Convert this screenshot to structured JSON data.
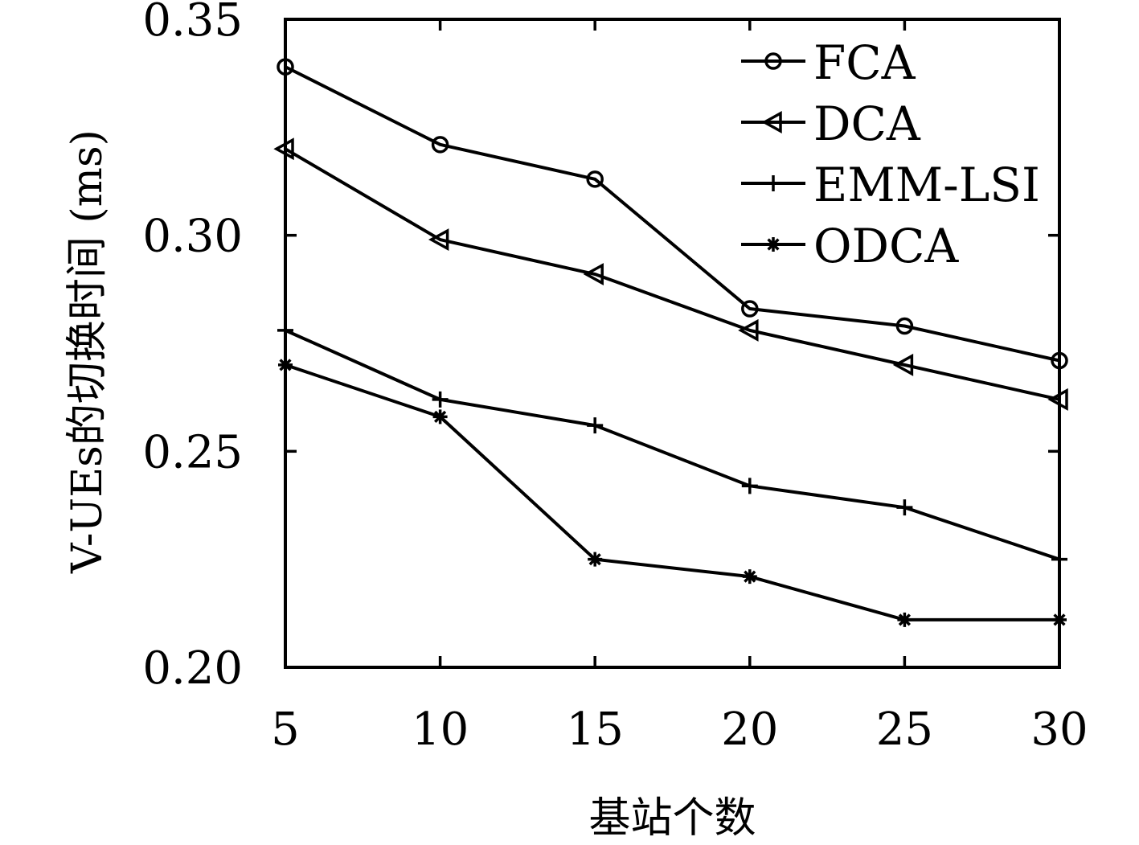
{
  "chart_data": {
    "type": "line",
    "x": [
      5,
      10,
      15,
      20,
      25,
      30
    ],
    "xlabel": "基站个数",
    "ylabel": "V-UEs的切换时间 (ms)",
    "xlim": [
      5,
      30
    ],
    "ylim": [
      0.2,
      0.35
    ],
    "xticks": [
      "5",
      "10",
      "15",
      "20",
      "25",
      "30"
    ],
    "yticks": [
      "0.20",
      "0.25",
      "0.30",
      "0.35"
    ],
    "grid": false,
    "legend_position": "top-right",
    "series": [
      {
        "name": "FCA",
        "marker": "circle",
        "values": [
          0.339,
          0.321,
          0.313,
          0.283,
          0.279,
          0.271
        ]
      },
      {
        "name": "DCA",
        "marker": "triangle-left",
        "values": [
          0.32,
          0.299,
          0.291,
          0.278,
          0.27,
          0.262
        ]
      },
      {
        "name": "EMM-LSI",
        "marker": "plus",
        "values": [
          0.278,
          0.262,
          0.256,
          0.242,
          0.237,
          0.225
        ]
      },
      {
        "name": "ODCA",
        "marker": "asterisk",
        "values": [
          0.27,
          0.258,
          0.225,
          0.221,
          0.211,
          0.211
        ]
      }
    ]
  }
}
